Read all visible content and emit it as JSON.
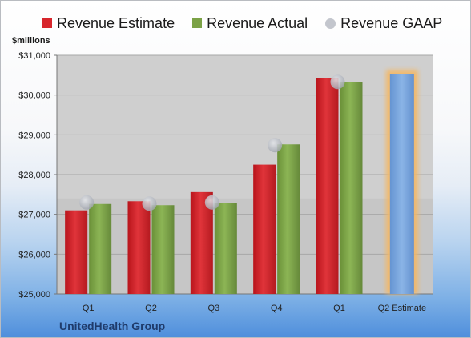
{
  "chart_data": {
    "type": "bar",
    "categories": [
      "Q1",
      "Q2",
      "Q3",
      "Q4",
      "Q1",
      "Q2 Estimate"
    ],
    "series": [
      {
        "name": "Revenue Estimate",
        "color": "#d7262c",
        "values": [
          27100,
          27330,
          27560,
          28250,
          30430,
          null
        ]
      },
      {
        "name": "Revenue Actual",
        "color": "#7ba246",
        "values": [
          27260,
          27230,
          27290,
          28760,
          30330,
          null
        ]
      },
      {
        "name": "Revenue GAAP",
        "color": "#b8bcc6",
        "style": "marker",
        "values": [
          27300,
          27270,
          27300,
          28740,
          30330,
          null
        ]
      }
    ],
    "estimate_bar": {
      "category_index": 5,
      "value": 30530,
      "color": "#7aa7de",
      "glow": "#f4b763"
    },
    "ylabel": "$millions",
    "ylim": [
      25000,
      31000
    ],
    "yticks": [
      25000,
      26000,
      27000,
      28000,
      29000,
      30000,
      31000
    ],
    "ytick_labels": [
      "$25,000",
      "$26,000",
      "$27,000",
      "$28,000",
      "$29,000",
      "$30,000",
      "$31,000"
    ],
    "grid": true,
    "legend_position": "top",
    "plot_background": "#cfcfcf"
  },
  "legend": {
    "estimate": "Revenue Estimate",
    "actual": "Revenue Actual",
    "gaap": "Revenue GAAP"
  },
  "footer": {
    "company": "UnitedHealth Group"
  }
}
